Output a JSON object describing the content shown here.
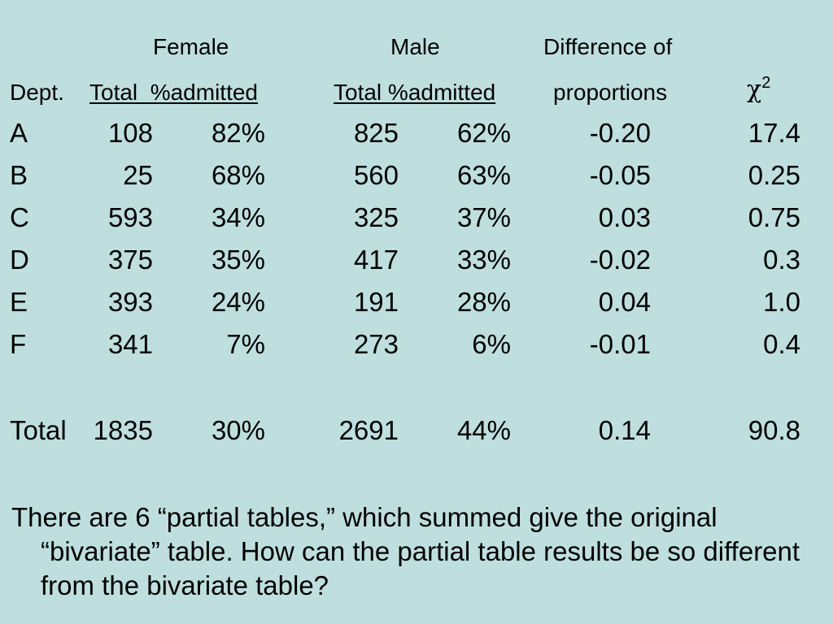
{
  "header": {
    "female": "Female",
    "male": "Male",
    "difference_of": "Difference of",
    "dept": "Dept.",
    "female_sub": "Total  %admitted",
    "male_sub": "Total %admitted",
    "proportions": "proportions",
    "chi_symbol": "χ",
    "chi_power": "2"
  },
  "rows": [
    {
      "dept": "A",
      "f_total": "108",
      "f_pct": "82%",
      "m_total": "825",
      "m_pct": "62%",
      "diff": "-0.20",
      "chi2": "17.4"
    },
    {
      "dept": "B",
      "f_total": "25",
      "f_pct": "68%",
      "m_total": "560",
      "m_pct": "63%",
      "diff": "-0.05",
      "chi2": "0.25"
    },
    {
      "dept": "C",
      "f_total": "593",
      "f_pct": "34%",
      "m_total": "325",
      "m_pct": "37%",
      "diff": "0.03",
      "chi2": "0.75"
    },
    {
      "dept": "D",
      "f_total": "375",
      "f_pct": "35%",
      "m_total": "417",
      "m_pct": "33%",
      "diff": "-0.02",
      "chi2": "0.3"
    },
    {
      "dept": "E",
      "f_total": "393",
      "f_pct": "24%",
      "m_total": "191",
      "m_pct": "28%",
      "diff": "0.04",
      "chi2": "1.0"
    },
    {
      "dept": "F",
      "f_total": "341",
      "f_pct": "7%",
      "m_total": "273",
      "m_pct": "6%",
      "diff": "-0.01",
      "chi2": "0.4"
    }
  ],
  "total": {
    "dept": "Total",
    "f_total": "1835",
    "f_pct": "30%",
    "m_total": "2691",
    "m_pct": "44%",
    "diff": "0.14",
    "chi2": "90.8"
  },
  "paragraph": "There are 6 “partial tables,” which summed give the original “bivariate” table.  How can the partial table results be so different from the bivariate table?"
}
